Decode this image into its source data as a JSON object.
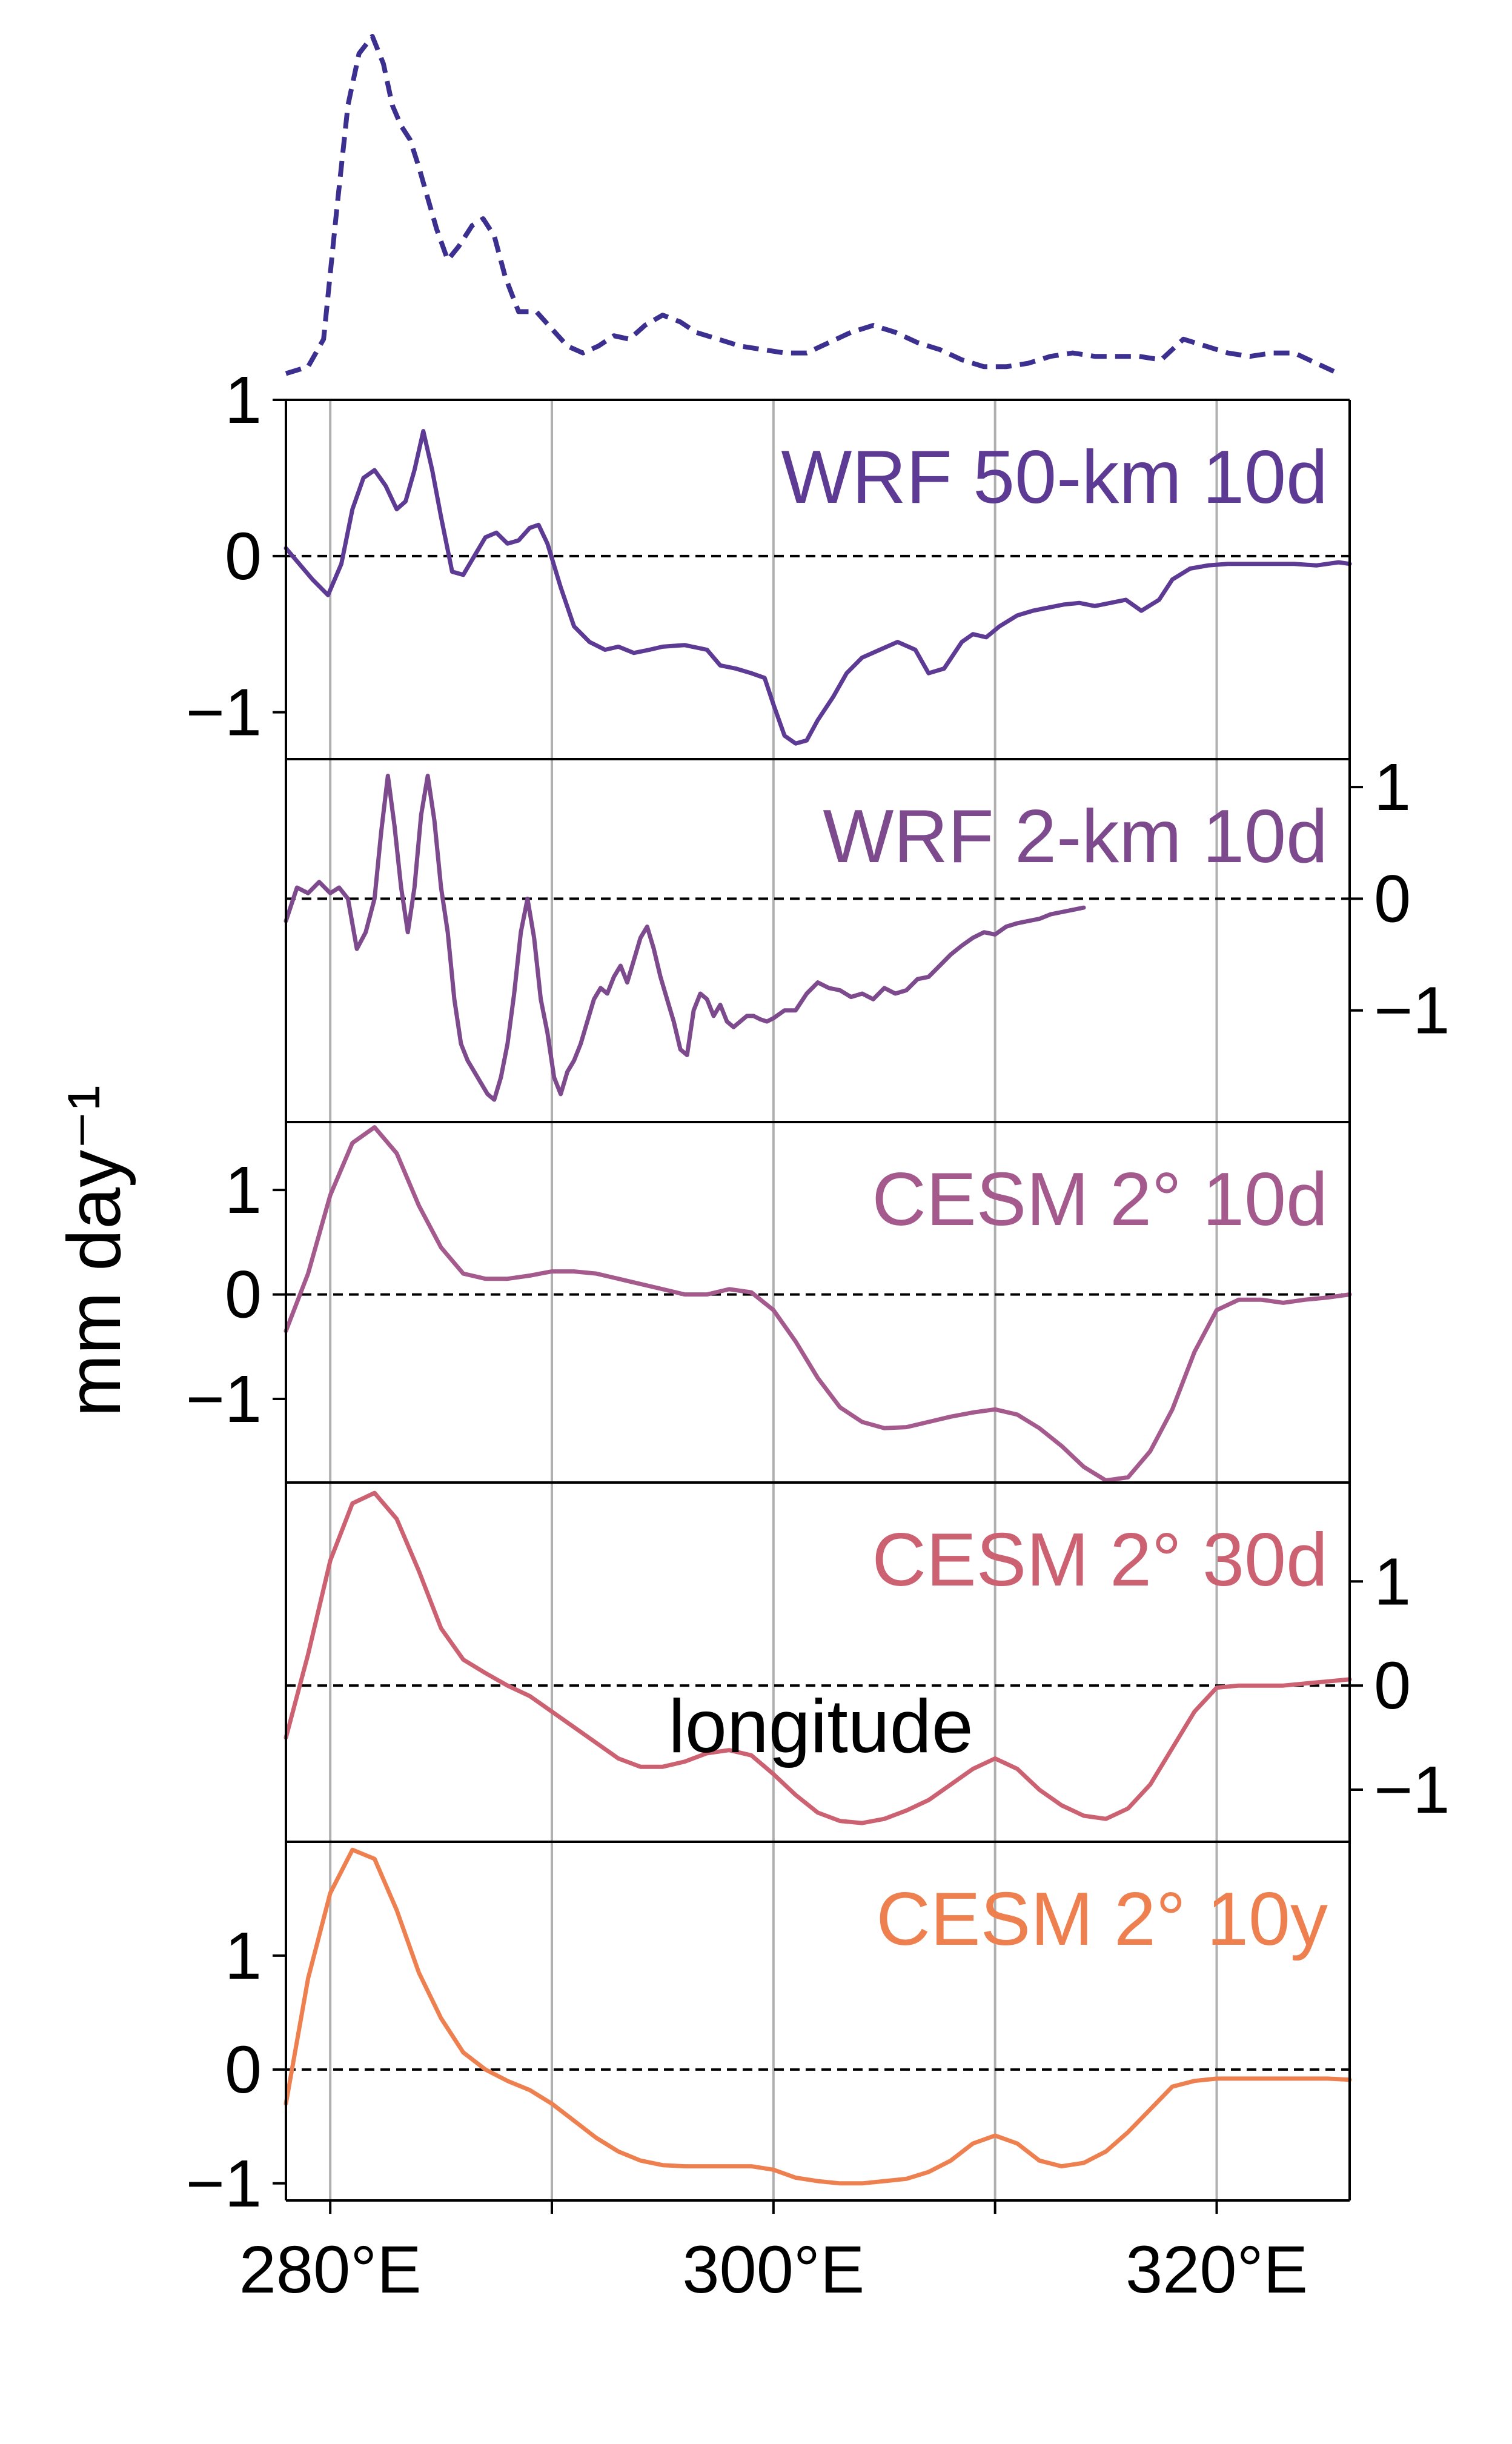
{
  "chart_data": {
    "type": "line",
    "xlabel": "longitude",
    "ylabel": "mm day⁻¹",
    "xlim": [
      278,
      326
    ],
    "x_ticks": [
      280,
      300,
      320
    ],
    "x_tick_labels": [
      "280°E",
      "300°E",
      "320°E"
    ],
    "x_minor_ticks": [
      290,
      310
    ],
    "grid_x": [
      280,
      290,
      300,
      310,
      320
    ],
    "zero_line": "dashed",
    "top_profile": {
      "style": "dashed",
      "color": "#3b2f8f",
      "points": [
        [
          278,
          0.02
        ],
        [
          279,
          0.04
        ],
        [
          279.7,
          0.12
        ],
        [
          280.3,
          0.5
        ],
        [
          280.8,
          0.8
        ],
        [
          281.3,
          0.95
        ],
        [
          281.9,
          1.0
        ],
        [
          282.4,
          0.92
        ],
        [
          282.8,
          0.8
        ],
        [
          283.2,
          0.74
        ],
        [
          283.6,
          0.7
        ],
        [
          284,
          0.62
        ],
        [
          284.4,
          0.53
        ],
        [
          284.8,
          0.44
        ],
        [
          285.3,
          0.35
        ],
        [
          285.8,
          0.39
        ],
        [
          286.4,
          0.45
        ],
        [
          286.9,
          0.47
        ],
        [
          287.4,
          0.42
        ],
        [
          287.9,
          0.3
        ],
        [
          288.5,
          0.2
        ],
        [
          289.3,
          0.2
        ],
        [
          290,
          0.15
        ],
        [
          290.7,
          0.1
        ],
        [
          291.4,
          0.08
        ],
        [
          292.1,
          0.1
        ],
        [
          292.8,
          0.13
        ],
        [
          293.5,
          0.12
        ],
        [
          294.2,
          0.16
        ],
        [
          295,
          0.19
        ],
        [
          295.8,
          0.17
        ],
        [
          296.5,
          0.14
        ],
        [
          297.5,
          0.12
        ],
        [
          298.5,
          0.1
        ],
        [
          299.5,
          0.09
        ],
        [
          300.5,
          0.08
        ],
        [
          301.5,
          0.08
        ],
        [
          302.5,
          0.11
        ],
        [
          303.5,
          0.14
        ],
        [
          304.5,
          0.16
        ],
        [
          305.5,
          0.14
        ],
        [
          306.5,
          0.11
        ],
        [
          307.5,
          0.09
        ],
        [
          308.5,
          0.06
        ],
        [
          309.5,
          0.04
        ],
        [
          310.5,
          0.04
        ],
        [
          311.5,
          0.05
        ],
        [
          312.5,
          0.07
        ],
        [
          313.5,
          0.08
        ],
        [
          314.5,
          0.07
        ],
        [
          315.5,
          0.07
        ],
        [
          316.5,
          0.07
        ],
        [
          317.5,
          0.06
        ],
        [
          318.5,
          0.12
        ],
        [
          319.5,
          0.1
        ],
        [
          320.5,
          0.08
        ],
        [
          321.5,
          0.07
        ],
        [
          322.5,
          0.08
        ],
        [
          323.5,
          0.08
        ],
        [
          324.5,
          0.05
        ],
        [
          325.5,
          0.02
        ]
      ]
    },
    "panels": [
      {
        "title": "WRF 50-km 10d",
        "color": "#5d3a94",
        "ylim": [
          -1.3,
          1.0
        ],
        "yticks": [
          1,
          0,
          -1
        ],
        "ytick_labels": [
          "1",
          "0",
          "−1"
        ],
        "ytick_side": "left",
        "show_frame_top": true,
        "x": [
          278,
          278.6,
          279.2,
          279.9,
          280.5,
          281,
          281.5,
          282,
          282.5,
          283,
          283.4,
          283.8,
          284.2,
          284.6,
          285,
          285.5,
          286,
          286.5,
          287,
          287.5,
          288,
          288.5,
          289,
          289.4,
          289.8,
          290.4,
          291,
          291.7,
          292.4,
          293,
          293.7,
          294.4,
          295,
          296,
          297,
          297.6,
          298.3,
          299,
          299.6,
          300,
          300.5,
          301,
          301.5,
          302,
          302.7,
          303.3,
          304,
          304.8,
          305.6,
          306.4,
          307,
          307.7,
          308.5,
          309,
          309.6,
          310.2,
          311,
          311.7,
          312.4,
          313.1,
          313.8,
          314.5,
          315.2,
          315.9,
          316.6,
          317.4,
          318,
          318.8,
          319.6,
          320.5,
          321.5,
          322.5,
          323.5,
          324.5,
          325.5,
          326
        ],
        "y": [
          0.05,
          -0.05,
          -0.15,
          -0.25,
          -0.05,
          0.3,
          0.5,
          0.55,
          0.45,
          0.3,
          0.35,
          0.55,
          0.8,
          0.55,
          0.25,
          -0.1,
          -0.12,
          0.0,
          0.12,
          0.15,
          0.08,
          0.1,
          0.18,
          0.2,
          0.08,
          -0.2,
          -0.45,
          -0.55,
          -0.6,
          -0.58,
          -0.62,
          -0.6,
          -0.58,
          -0.57,
          -0.6,
          -0.7,
          -0.72,
          -0.75,
          -0.78,
          -0.95,
          -1.15,
          -1.2,
          -1.18,
          -1.05,
          -0.9,
          -0.75,
          -0.65,
          -0.6,
          -0.55,
          -0.6,
          -0.75,
          -0.72,
          -0.55,
          -0.5,
          -0.52,
          -0.45,
          -0.38,
          -0.35,
          -0.33,
          -0.31,
          -0.3,
          -0.32,
          -0.3,
          -0.28,
          -0.35,
          -0.28,
          -0.15,
          -0.08,
          -0.06,
          -0.05,
          -0.05,
          -0.05,
          -0.05,
          -0.06,
          -0.04,
          -0.05
        ]
      },
      {
        "title": "WRF 2-km 10d",
        "color": "#7e4a8e",
        "ylim": [
          -2.0,
          1.25
        ],
        "yticks": [
          1,
          0,
          -1
        ],
        "ytick_labels": [
          "1",
          "0",
          "−1"
        ],
        "ytick_side": "right",
        "show_frame_top": false,
        "x": [
          278,
          278.5,
          279,
          279.5,
          280,
          280.4,
          280.8,
          281.2,
          281.6,
          282,
          282.3,
          282.6,
          282.9,
          283.2,
          283.5,
          283.8,
          284.1,
          284.4,
          284.7,
          285,
          285.3,
          285.6,
          285.9,
          286.2,
          286.5,
          286.8,
          287.1,
          287.4,
          287.7,
          288,
          288.3,
          288.6,
          288.9,
          289.2,
          289.5,
          289.8,
          290.1,
          290.4,
          290.7,
          291,
          291.3,
          291.6,
          291.9,
          292.2,
          292.5,
          292.8,
          293.1,
          293.4,
          293.7,
          294,
          294.3,
          294.6,
          294.9,
          295.2,
          295.5,
          295.8,
          296.1,
          296.4,
          296.7,
          297,
          297.3,
          297.6,
          297.9,
          298.2,
          298.5,
          298.8,
          299.1,
          299.4,
          299.7,
          300,
          300.5,
          301,
          301.5,
          302,
          302.5,
          303,
          303.5,
          304,
          304.5,
          305,
          305.5,
          306,
          306.5,
          307,
          307.5,
          308,
          308.5,
          309,
          309.5,
          310,
          310.5,
          311,
          311.5,
          312,
          312.5,
          313,
          313.5,
          314
        ],
        "y": [
          -0.2,
          0.1,
          0.05,
          0.15,
          0.05,
          0.1,
          0.0,
          -0.45,
          -0.3,
          0.0,
          0.6,
          1.1,
          0.65,
          0.1,
          -0.3,
          0.1,
          0.75,
          1.1,
          0.7,
          0.1,
          -0.3,
          -0.9,
          -1.3,
          -1.45,
          -1.55,
          -1.65,
          -1.75,
          -1.8,
          -1.6,
          -1.3,
          -0.85,
          -0.3,
          0.0,
          -0.35,
          -0.9,
          -1.2,
          -1.6,
          -1.75,
          -1.55,
          -1.45,
          -1.3,
          -1.1,
          -0.9,
          -0.8,
          -0.85,
          -0.7,
          -0.6,
          -0.75,
          -0.55,
          -0.35,
          -0.25,
          -0.45,
          -0.7,
          -0.9,
          -1.1,
          -1.35,
          -1.4,
          -1.0,
          -0.85,
          -0.9,
          -1.05,
          -0.95,
          -1.1,
          -1.15,
          -1.1,
          -1.05,
          -1.05,
          -1.08,
          -1.1,
          -1.07,
          -1.0,
          -1.0,
          -0.85,
          -0.75,
          -0.8,
          -0.82,
          -0.88,
          -0.85,
          -0.9,
          -0.8,
          -0.85,
          -0.82,
          -0.72,
          -0.7,
          -0.6,
          -0.5,
          -0.42,
          -0.35,
          -0.3,
          -0.32,
          -0.25,
          -0.22,
          -0.2,
          -0.18,
          -0.14,
          -0.12,
          -0.1,
          -0.08
        ]
      },
      {
        "title": "CESM 2° 10d",
        "color": "#a45a8c",
        "ylim": [
          -1.8,
          1.65
        ],
        "yticks": [
          1,
          0,
          -1
        ],
        "ytick_labels": [
          "1",
          "0",
          "−1"
        ],
        "ytick_side": "left",
        "show_frame_top": false,
        "x": [
          278,
          279,
          280,
          281,
          282,
          283,
          284,
          285,
          286,
          287,
          288,
          289,
          290,
          291,
          292,
          293,
          294,
          295,
          296,
          297,
          298,
          299,
          300,
          301,
          302,
          303,
          304,
          305,
          306,
          307,
          308,
          309,
          310,
          311,
          312,
          313,
          314,
          315,
          316,
          317,
          318,
          319,
          320,
          321,
          322,
          323,
          324,
          325,
          326
        ],
        "y": [
          -0.35,
          0.2,
          0.95,
          1.45,
          1.6,
          1.35,
          0.85,
          0.45,
          0.2,
          0.15,
          0.15,
          0.18,
          0.22,
          0.22,
          0.2,
          0.15,
          0.1,
          0.05,
          0.0,
          0.0,
          0.05,
          0.02,
          -0.15,
          -0.45,
          -0.8,
          -1.08,
          -1.22,
          -1.28,
          -1.27,
          -1.22,
          -1.17,
          -1.13,
          -1.1,
          -1.15,
          -1.28,
          -1.45,
          -1.65,
          -1.78,
          -1.75,
          -1.5,
          -1.1,
          -0.55,
          -0.15,
          -0.05,
          -0.05,
          -0.08,
          -0.05,
          -0.03,
          0.0
        ]
      },
      {
        "title": "CESM 2° 30d",
        "color": "#cc6171",
        "ylim": [
          -1.5,
          1.95
        ],
        "yticks": [
          1,
          0,
          -1
        ],
        "ytick_labels": [
          "1",
          "0",
          "−1"
        ],
        "ytick_side": "right",
        "show_frame_top": false,
        "x": [
          278,
          279,
          280,
          281,
          282,
          283,
          284,
          285,
          286,
          287,
          288,
          289,
          290,
          291,
          292,
          293,
          294,
          295,
          296,
          297,
          298,
          299,
          300,
          301,
          302,
          303,
          304,
          305,
          306,
          307,
          308,
          309,
          310,
          311,
          312,
          313,
          314,
          315,
          316,
          317,
          318,
          319,
          320,
          321,
          322,
          323,
          324,
          325,
          326
        ],
        "y": [
          -0.5,
          0.3,
          1.2,
          1.75,
          1.85,
          1.6,
          1.1,
          0.55,
          0.25,
          0.12,
          0.0,
          -0.1,
          -0.25,
          -0.4,
          -0.55,
          -0.7,
          -0.78,
          -0.78,
          -0.73,
          -0.65,
          -0.62,
          -0.67,
          -0.85,
          -1.05,
          -1.22,
          -1.3,
          -1.32,
          -1.28,
          -1.2,
          -1.1,
          -0.95,
          -0.8,
          -0.7,
          -0.8,
          -1.0,
          -1.15,
          -1.25,
          -1.28,
          -1.18,
          -0.95,
          -0.6,
          -0.25,
          -0.02,
          0.0,
          0.0,
          0.0,
          0.02,
          0.04,
          0.06
        ]
      },
      {
        "title": "CESM 2° 10y",
        "color": "#ee8050",
        "ylim": [
          -1.15,
          2.0
        ],
        "yticks": [
          1,
          0,
          -1
        ],
        "ytick_labels": [
          "1",
          "0",
          "−1"
        ],
        "ytick_side": "left",
        "show_frame_top": false,
        "x": [
          278,
          279,
          280,
          281,
          282,
          283,
          284,
          285,
          286,
          287,
          288,
          289,
          290,
          291,
          292,
          293,
          294,
          295,
          296,
          297,
          298,
          299,
          300,
          301,
          302,
          303,
          304,
          305,
          306,
          307,
          308,
          309,
          310,
          311,
          312,
          313,
          314,
          315,
          316,
          317,
          318,
          319,
          320,
          321,
          322,
          323,
          324,
          325,
          326
        ],
        "y": [
          -0.3,
          0.8,
          1.55,
          1.93,
          1.85,
          1.4,
          0.85,
          0.45,
          0.15,
          0.0,
          -0.1,
          -0.18,
          -0.3,
          -0.45,
          -0.6,
          -0.72,
          -0.8,
          -0.84,
          -0.85,
          -0.85,
          -0.85,
          -0.85,
          -0.88,
          -0.95,
          -0.98,
          -1.0,
          -1.0,
          -0.98,
          -0.96,
          -0.9,
          -0.8,
          -0.65,
          -0.58,
          -0.65,
          -0.8,
          -0.85,
          -0.82,
          -0.72,
          -0.55,
          -0.35,
          -0.15,
          -0.1,
          -0.08,
          -0.08,
          -0.08,
          -0.08,
          -0.08,
          -0.08,
          -0.09
        ]
      }
    ]
  }
}
